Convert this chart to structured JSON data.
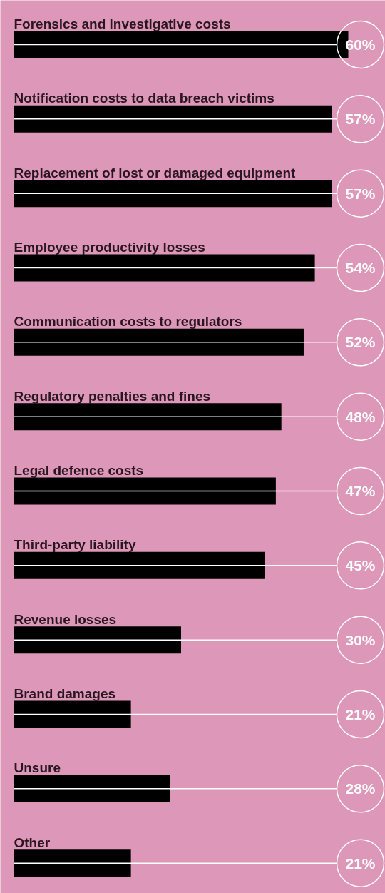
{
  "chart_data": {
    "type": "bar",
    "orientation": "horizontal",
    "categories": [
      "Forensics and investigative costs",
      "Notification costs to data breach victims",
      "Replacement of lost or damaged equipment",
      "Employee productivity losses",
      "Communication costs to regulators",
      "Regulatory penalties and fines",
      "Legal defence costs",
      "Third-party liability",
      "Revenue losses",
      "Brand damages",
      "Unsure",
      "Other"
    ],
    "values": [
      60,
      57,
      57,
      54,
      52,
      48,
      47,
      45,
      30,
      21,
      28,
      21
    ],
    "value_labels": [
      "60%",
      "57%",
      "57%",
      "54%",
      "52%",
      "48%",
      "47%",
      "45%",
      "30%",
      "21%",
      "28%",
      "21%"
    ],
    "color": "#000000"
  }
}
